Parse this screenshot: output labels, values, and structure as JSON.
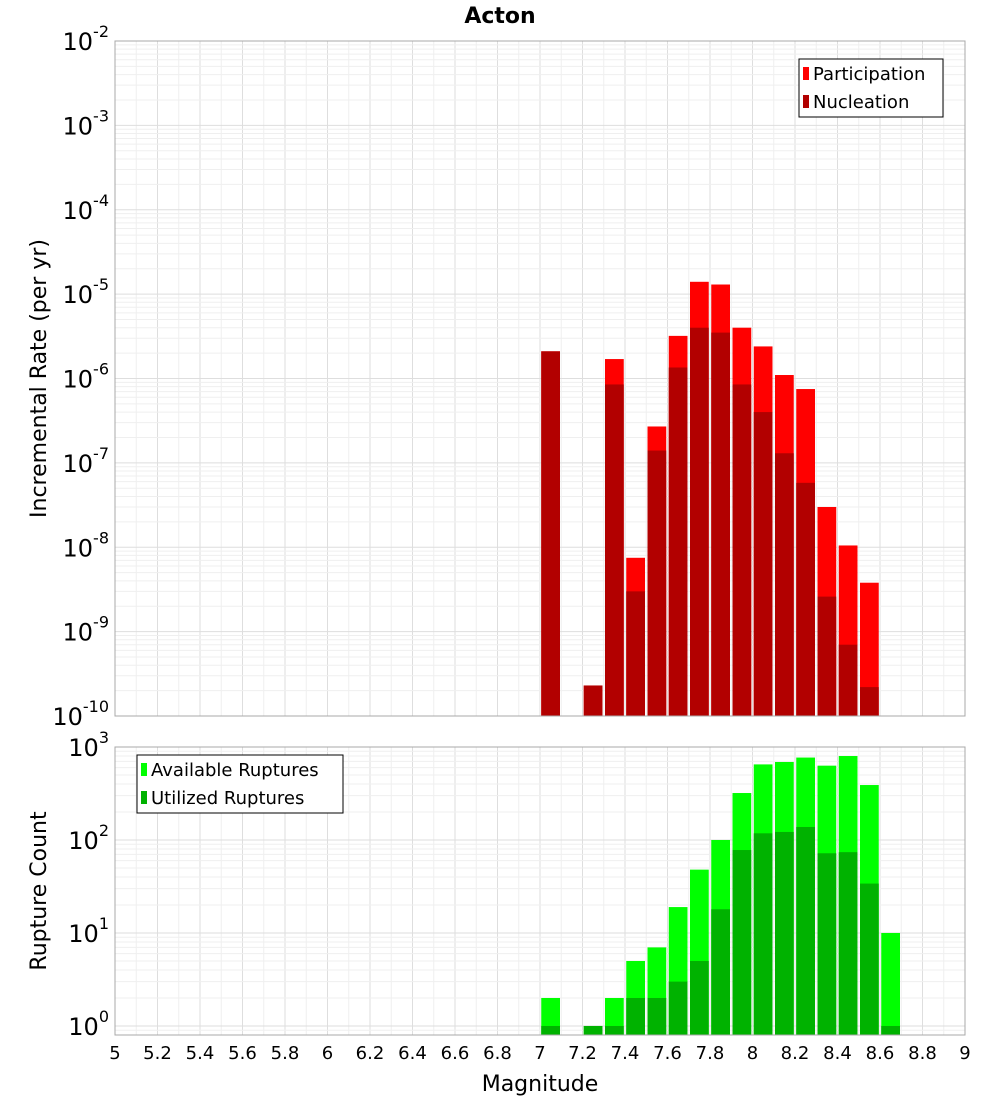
{
  "chart_data": {
    "type": "bar",
    "title": "Acton",
    "xlabel": "Magnitude",
    "xlim": [
      5,
      9
    ],
    "x_ticks": [
      "5",
      "5.2",
      "5.4",
      "5.6",
      "5.8",
      "6",
      "6.2",
      "6.4",
      "6.6",
      "6.8",
      "7",
      "7.2",
      "7.4",
      "7.6",
      "7.8",
      "8",
      "8.2",
      "8.4",
      "8.6",
      "8.8",
      "9"
    ],
    "bin_width": 0.1,
    "grid": true,
    "panels": [
      {
        "ylabel": "Incremental Rate (per yr)",
        "yscale": "log",
        "ylim": [
          1e-10,
          0.01
        ],
        "y_ticks": [
          {
            "base": "10",
            "exp": "-10"
          },
          {
            "base": "10",
            "exp": "-9"
          },
          {
            "base": "10",
            "exp": "-8"
          },
          {
            "base": "10",
            "exp": "-7"
          },
          {
            "base": "10",
            "exp": "-6"
          },
          {
            "base": "10",
            "exp": "-5"
          },
          {
            "base": "10",
            "exp": "-4"
          },
          {
            "base": "10",
            "exp": "-3"
          },
          {
            "base": "10",
            "exp": "-2"
          }
        ],
        "legend_position": "top-right",
        "x": [
          7.05,
          7.15,
          7.25,
          7.35,
          7.45,
          7.55,
          7.65,
          7.75,
          7.85,
          7.95,
          8.05,
          8.15,
          8.25,
          8.35,
          8.45,
          8.55
        ],
        "series": [
          {
            "name": "Participation",
            "color": "#ff0000",
            "values": [
              2.1e-06,
              null,
              2.3e-10,
              1.7e-06,
              7.5e-09,
              2.7e-07,
              3.2e-06,
              1.4e-05,
              1.3e-05,
              4e-06,
              2.4e-06,
              1.1e-06,
              7.5e-07,
              3e-08,
              1.05e-08,
              3.8e-09
            ]
          },
          {
            "name": "Nucleation",
            "color": "#b20000",
            "values": [
              2.1e-06,
              null,
              2.3e-10,
              8.5e-07,
              3e-09,
              1.4e-07,
              1.35e-06,
              4e-06,
              3.5e-06,
              8.5e-07,
              4e-07,
              1.3e-07,
              5.8e-08,
              2.6e-09,
              7e-10,
              2.2e-10
            ]
          }
        ]
      },
      {
        "ylabel": "Rupture Count",
        "yscale": "log",
        "ylim": [
          0.8,
          1000
        ],
        "y_ticks": [
          {
            "base": "10",
            "exp": "0"
          },
          {
            "base": "10",
            "exp": "1"
          },
          {
            "base": "10",
            "exp": "2"
          },
          {
            "base": "10",
            "exp": "3"
          }
        ],
        "legend_position": "top-left",
        "x": [
          7.05,
          7.15,
          7.25,
          7.35,
          7.45,
          7.55,
          7.65,
          7.75,
          7.85,
          7.95,
          8.05,
          8.15,
          8.25,
          8.35,
          8.45,
          8.55,
          8.65
        ],
        "series": [
          {
            "name": "Available Ruptures",
            "color": "#00ff00",
            "values": [
              2,
              null,
              1,
              2,
              5,
              7,
              19,
              48,
              100,
              320,
              650,
              690,
              770,
              630,
              800,
              390,
              10
            ]
          },
          {
            "name": "Utilized Ruptures",
            "color": "#00b200",
            "values": [
              1,
              null,
              1,
              1,
              2,
              2,
              3,
              5,
              18,
              78,
              118,
              122,
              138,
              72,
              74,
              34,
              1
            ]
          }
        ]
      }
    ]
  }
}
